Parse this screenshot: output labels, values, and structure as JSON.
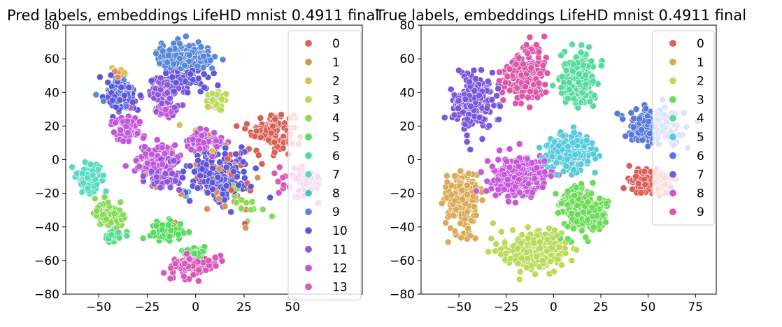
{
  "chart_data": [
    {
      "type": "scatter",
      "title": "Pred labels, embeddings LifeHD mnist 0.4911 final",
      "xlim": [
        -67,
        86
      ],
      "ylim": [
        -80,
        80
      ],
      "xticks": [
        -50,
        -25,
        0,
        25,
        50
      ],
      "yticks": [
        -80,
        -60,
        -40,
        -20,
        0,
        20,
        40,
        60,
        80
      ],
      "xlabel": "",
      "ylabel": "",
      "legend_position": "upper-right",
      "palette": [
        "#db5f57",
        "#db9057",
        "#dbc157",
        "#b9db57",
        "#88db57",
        "#57db5f",
        "#57db90",
        "#57dbc1",
        "#57b9db",
        "#5788db",
        "#5f57db",
        "#9057db",
        "#c157db",
        "#db57b9"
      ],
      "series": [
        {
          "name": "0",
          "clusters": [
            {
              "center": [
                40,
                18
              ],
              "spread": [
                9,
                9
              ],
              "n": 110
            },
            {
              "center": [
                20,
                -5
              ],
              "spread": [
                20,
                18
              ],
              "n": 25
            }
          ]
        },
        {
          "name": "1",
          "clusters": [
            {
              "center": [
                5,
                -15
              ],
              "spread": [
                25,
                22
              ],
              "n": 25
            },
            {
              "center": [
                -40,
                50
              ],
              "spread": [
                3,
                3
              ],
              "n": 6
            }
          ]
        },
        {
          "name": "2",
          "clusters": [
            {
              "center": [
                -40,
                52
              ],
              "spread": [
                3,
                3
              ],
              "n": 8
            },
            {
              "center": [
                10,
                20
              ],
              "spread": [
                15,
                15
              ],
              "n": 6
            }
          ]
        },
        {
          "name": "3",
          "clusters": [
            {
              "center": [
                12,
                35
              ],
              "spread": [
                5,
                4
              ],
              "n": 45
            }
          ]
        },
        {
          "name": "4",
          "clusters": [
            {
              "center": [
                -45,
                -33
              ],
              "spread": [
                6,
                6
              ],
              "n": 90
            },
            {
              "center": [
                25,
                -25
              ],
              "spread": [
                8,
                8
              ],
              "n": 15
            }
          ]
        },
        {
          "name": "5",
          "clusters": [
            {
              "center": [
                -15,
                -43
              ],
              "spread": [
                7,
                5
              ],
              "n": 70
            },
            {
              "center": [
                0,
                -55
              ],
              "spread": [
                6,
                3
              ],
              "n": 25
            }
          ]
        },
        {
          "name": "6",
          "clusters": [
            {
              "center": [
                -42,
                -45
              ],
              "spread": [
                4,
                3
              ],
              "n": 30
            }
          ]
        },
        {
          "name": "7",
          "clusters": [
            {
              "center": [
                -55,
                -10
              ],
              "spread": [
                5,
                7
              ],
              "n": 120
            }
          ]
        },
        {
          "name": "8",
          "clusters": [
            {
              "center": [
                -5,
                -20
              ],
              "spread": [
                3,
                3
              ],
              "n": 3
            }
          ]
        },
        {
          "name": "9",
          "clusters": [
            {
              "center": [
                -5,
                60
              ],
              "spread": [
                12,
                7
              ],
              "n": 220
            },
            {
              "center": [
                -40,
                40
              ],
              "spread": [
                6,
                7
              ],
              "n": 40
            }
          ]
        },
        {
          "name": "10",
          "clusters": [
            {
              "center": [
                -38,
                38
              ],
              "spread": [
                6,
                7
              ],
              "n": 110
            },
            {
              "center": [
                12,
                -8
              ],
              "spread": [
                13,
                14
              ],
              "n": 180
            },
            {
              "center": [
                -5,
                48
              ],
              "spread": [
                13,
                6
              ],
              "n": 60
            }
          ]
        },
        {
          "name": "11",
          "clusters": [
            {
              "center": [
                -15,
                40
              ],
              "spread": [
                9,
                10
              ],
              "n": 70
            },
            {
              "center": [
                -15,
                -10
              ],
              "spread": [
                8,
                8
              ],
              "n": 50
            }
          ]
        },
        {
          "name": "12",
          "clusters": [
            {
              "center": [
                -35,
                20
              ],
              "spread": [
                6,
                6
              ],
              "n": 70
            },
            {
              "center": [
                -20,
                0
              ],
              "spread": [
                10,
                8
              ],
              "n": 90
            },
            {
              "center": [
                5,
                10
              ],
              "spread": [
                8,
                6
              ],
              "n": 60
            },
            {
              "center": [
                -15,
                30
              ],
              "spread": [
                5,
                5
              ],
              "n": 30
            }
          ]
        },
        {
          "name": "13",
          "clusters": [
            {
              "center": [
                -2,
                -63
              ],
              "spread": [
                10,
                5
              ],
              "n": 110
            },
            {
              "center": [
                55,
                -12
              ],
              "spread": [
                10,
                8
              ],
              "n": 60
            }
          ]
        }
      ]
    },
    {
      "type": "scatter",
      "title": "True labels, embeddings LifeHD mnist 0.4911 final",
      "xlim": [
        -70,
        86
      ],
      "ylim": [
        -80,
        80
      ],
      "xticks": [
        -50,
        -25,
        0,
        25,
        50,
        75
      ],
      "yticks": [
        -80,
        -60,
        -40,
        -20,
        0,
        20,
        40,
        60,
        80
      ],
      "xlabel": "",
      "ylabel": "",
      "legend_position": "upper-right",
      "palette": [
        "#db5f57",
        "#dbaa57",
        "#b9db57",
        "#6ddb57",
        "#57db9f",
        "#57cadb",
        "#5779db",
        "#7a57db",
        "#c857db",
        "#db57a8"
      ],
      "series": [
        {
          "name": "0",
          "clusters": [
            {
              "center": [
                52,
                -14
              ],
              "spread": [
                9,
                6
              ],
              "n": 150
            }
          ]
        },
        {
          "name": "1",
          "clusters": [
            {
              "center": [
                -48,
                -25
              ],
              "spread": [
                7,
                14
              ],
              "n": 220
            }
          ]
        },
        {
          "name": "2",
          "clusters": [
            {
              "center": [
                -10,
                -55
              ],
              "spread": [
                14,
                10
              ],
              "n": 260
            }
          ]
        },
        {
          "name": "3",
          "clusters": [
            {
              "center": [
                15,
                -30
              ],
              "spread": [
                11,
                11
              ],
              "n": 230
            }
          ]
        },
        {
          "name": "4",
          "clusters": [
            {
              "center": [
                12,
                48
              ],
              "spread": [
                8,
                13
              ],
              "n": 220
            }
          ]
        },
        {
          "name": "5",
          "clusters": [
            {
              "center": [
                8,
                5
              ],
              "spread": [
                11,
                9
              ],
              "n": 220
            }
          ]
        },
        {
          "name": "6",
          "clusters": [
            {
              "center": [
                52,
                20
              ],
              "spread": [
                12,
                8
              ],
              "n": 200
            }
          ]
        },
        {
          "name": "7",
          "clusters": [
            {
              "center": [
                -42,
                35
              ],
              "spread": [
                8,
                14
              ],
              "n": 220
            }
          ]
        },
        {
          "name": "8",
          "clusters": [
            {
              "center": [
                -18,
                -10
              ],
              "spread": [
                13,
                10
              ],
              "n": 260
            }
          ]
        },
        {
          "name": "9",
          "clusters": [
            {
              "center": [
                -15,
                50
              ],
              "spread": [
                9,
                14
              ],
              "n": 220
            }
          ]
        }
      ]
    }
  ]
}
